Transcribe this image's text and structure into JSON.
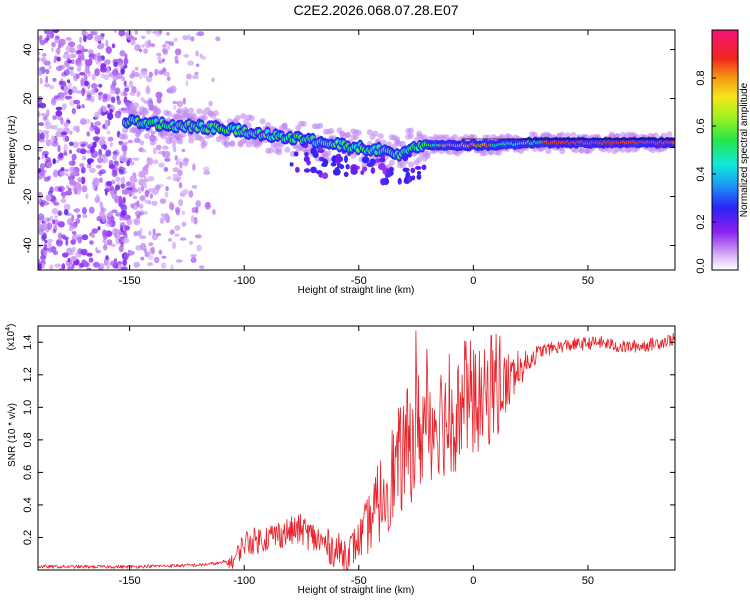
{
  "title": "C2E2.2026.068.07.28.E07",
  "colors": {
    "trace": "#e8222a",
    "axis": "#000000",
    "background": "#ffffff"
  },
  "chart_data": [
    {
      "type": "heatmap",
      "title": "C2E2.2026.068.07.28.E07",
      "xlabel": "Height of straight line (km)",
      "ylabel": "Frequency (Hz)",
      "xlim": [
        -190,
        88
      ],
      "ylim": [
        -50,
        48
      ],
      "xticks": [
        -150,
        -100,
        -50,
        0,
        50
      ],
      "yticks": [
        -40,
        -20,
        0,
        20,
        40
      ],
      "ridge": {
        "description": "dominant frequency ridge",
        "points": [
          [
            -152,
            11
          ],
          [
            -130,
            9
          ],
          [
            -110,
            8
          ],
          [
            -95,
            6
          ],
          [
            -80,
            4
          ],
          [
            -65,
            2
          ],
          [
            -50,
            0
          ],
          [
            -40,
            -1
          ],
          [
            -33,
            -3
          ],
          [
            -28,
            0
          ],
          [
            -20,
            1
          ],
          [
            -10,
            1
          ],
          [
            0,
            1
          ],
          [
            10,
            1
          ],
          [
            25,
            2
          ],
          [
            50,
            2
          ],
          [
            88,
            2
          ]
        ],
        "high_amplitude_ranges": [
          [
            -15,
            8
          ],
          [
            30,
            80
          ]
        ]
      },
      "noise_region": {
        "x": [
          -190,
          -110
        ],
        "note": "scattered low-amplitude speckle"
      },
      "colorbar": {
        "label": "Normalized spectral amplitude",
        "range": [
          0.0,
          1.0
        ],
        "ticks": [
          "0.0",
          "0.2",
          "0.4",
          "0.6",
          "0.8"
        ]
      }
    },
    {
      "type": "line",
      "xlabel": "Height of straight line (km)",
      "ylabel": "SNR (10 * v/v)",
      "multiplier": "(x10",
      "multiplier_exp": "4",
      "multiplier_close": ")",
      "xlim": [
        -190,
        88
      ],
      "ylim": [
        0,
        1.5
      ],
      "xticks": [
        -150,
        -100,
        -50,
        0,
        50
      ],
      "yticks": [
        "0.2",
        "0.4",
        "0.6",
        "0.8",
        "1.0",
        "1.2",
        "1.4"
      ],
      "series": [
        {
          "name": "SNR",
          "envelope": [
            [
              -190,
              0.02
            ],
            [
              -150,
              0.02
            ],
            [
              -120,
              0.03
            ],
            [
              -105,
              0.05
            ],
            [
              -100,
              0.17
            ],
            [
              -95,
              0.18
            ],
            [
              -85,
              0.22
            ],
            [
              -75,
              0.25
            ],
            [
              -70,
              0.2
            ],
            [
              -60,
              0.12
            ],
            [
              -55,
              0.1
            ],
            [
              -50,
              0.18
            ],
            [
              -45,
              0.3
            ],
            [
              -40,
              0.45
            ],
            [
              -35,
              0.6
            ],
            [
              -30,
              0.72
            ],
            [
              -25,
              0.85
            ],
            [
              -20,
              0.9
            ],
            [
              -15,
              0.95
            ],
            [
              -10,
              0.9
            ],
            [
              -5,
              1.0
            ],
            [
              0,
              1.02
            ],
            [
              5,
              1.05
            ],
            [
              10,
              1.1
            ],
            [
              15,
              1.15
            ],
            [
              20,
              1.22
            ],
            [
              25,
              1.3
            ],
            [
              30,
              1.35
            ],
            [
              40,
              1.38
            ],
            [
              55,
              1.4
            ],
            [
              65,
              1.37
            ],
            [
              75,
              1.38
            ],
            [
              88,
              1.42
            ]
          ],
          "noise_amplitude": [
            [
              -190,
              0.01
            ],
            [
              -110,
              0.01
            ],
            [
              -100,
              0.08
            ],
            [
              -70,
              0.1
            ],
            [
              -50,
              0.12
            ],
            [
              -40,
              0.28
            ],
            [
              -25,
              0.4
            ],
            [
              -10,
              0.35
            ],
            [
              10,
              0.3
            ],
            [
              20,
              0.1
            ],
            [
              30,
              0.04
            ],
            [
              88,
              0.04
            ]
          ],
          "spikes": [
            [
              -25,
              1.47
            ],
            [
              -20,
              1.25
            ],
            [
              -14,
              1.12
            ],
            [
              -7,
              1.22
            ],
            [
              0,
              1.35
            ],
            [
              8,
              1.44
            ],
            [
              10,
              1.45
            ],
            [
              12,
              0.98
            ]
          ]
        }
      ]
    }
  ]
}
